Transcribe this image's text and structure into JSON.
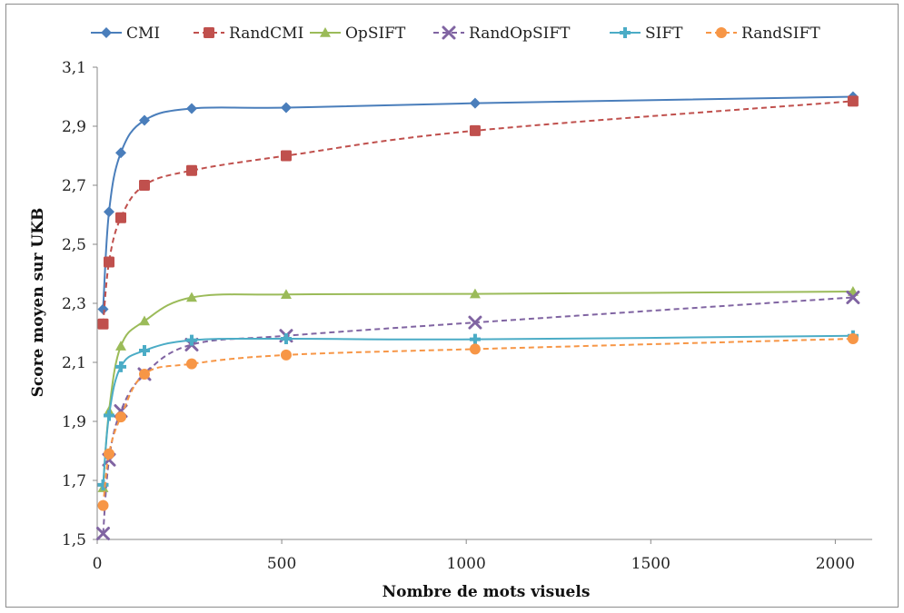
{
  "chart_data": {
    "type": "line",
    "title": "",
    "xlabel": "Nombre de mots visuels",
    "ylabel": "Score moyen sur UKB",
    "xlim": [
      0,
      2100
    ],
    "ylim": [
      1.5,
      3.1
    ],
    "x_ticks": [
      "0",
      "500",
      "1000",
      "1500",
      "2000"
    ],
    "y_ticks": [
      "1,5",
      "1,7",
      "1,9",
      "2,1",
      "2,3",
      "2,5",
      "2,7",
      "2,9",
      "3,1"
    ],
    "x": [
      16,
      32,
      64,
      128,
      256,
      512,
      1024,
      2048
    ],
    "legend_position": "top",
    "grid": false,
    "series": [
      {
        "name": "CMI",
        "color": "#4a7ebb",
        "dashed": false,
        "marker": "diamond",
        "values": [
          2.28,
          2.61,
          2.81,
          2.92,
          2.96,
          2.963,
          2.978,
          3.0
        ]
      },
      {
        "name": "RandCMI",
        "color": "#c0504d",
        "dashed": true,
        "marker": "square",
        "values": [
          2.23,
          2.44,
          2.59,
          2.7,
          2.75,
          2.8,
          2.885,
          2.985
        ]
      },
      {
        "name": "OpSIFT",
        "color": "#9bbb59",
        "dashed": false,
        "marker": "triangle",
        "values": [
          1.675,
          1.935,
          2.155,
          2.24,
          2.32,
          2.33,
          2.332,
          2.34
        ]
      },
      {
        "name": "RandOpSIFT",
        "color": "#8064a2",
        "dashed": true,
        "marker": "x",
        "values": [
          1.52,
          1.77,
          1.935,
          2.06,
          2.16,
          2.19,
          2.235,
          2.32
        ]
      },
      {
        "name": "SIFT",
        "color": "#4bacc6",
        "dashed": false,
        "marker": "plus",
        "values": [
          1.685,
          1.92,
          2.085,
          2.14,
          2.175,
          2.18,
          2.178,
          2.19
        ]
      },
      {
        "name": "RandSIFT",
        "color": "#f79646",
        "dashed": true,
        "marker": "circle",
        "values": [
          1.615,
          1.79,
          1.915,
          2.06,
          2.095,
          2.125,
          2.145,
          2.18
        ]
      }
    ]
  }
}
